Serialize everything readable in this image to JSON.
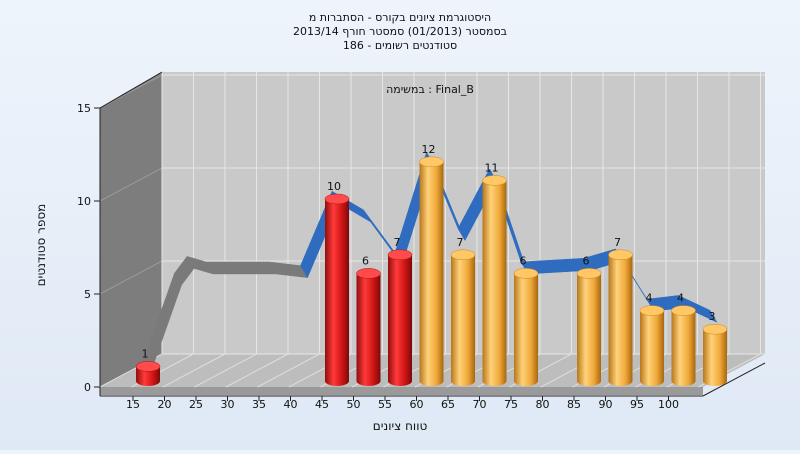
{
  "chart_data": {
    "type": "bar",
    "title_lines": [
      "היסטוגרמת ציונים בקורס - הסתברות מ",
      "בסמסטר  (01/2013)  סמסטר חורף 2013/14",
      "סטודנטים רשומים - 186"
    ],
    "inner_title": "במשימה : Final_B",
    "xlabel": "טווח ציונים",
    "ylabel": "מספר סטודנטים",
    "x_tick_labels": [
      "15",
      "20",
      "25",
      "30",
      "35",
      "40",
      "45",
      "50",
      "55",
      "60",
      "65",
      "70",
      "75",
      "80",
      "85",
      "90",
      "95",
      "100"
    ],
    "y_tick_labels": [
      "0",
      "5",
      "10",
      "15"
    ],
    "ylim": [
      0,
      15
    ],
    "bars": [
      {
        "bin": "15",
        "value": 1,
        "color": "#d81b1b"
      },
      {
        "bin": "45",
        "value": 10,
        "color": "#d81b1b"
      },
      {
        "bin": "50",
        "value": 6,
        "color": "#d81b1b"
      },
      {
        "bin": "55",
        "value": 7,
        "color": "#d81b1b"
      },
      {
        "bin": "60",
        "value": 12,
        "color": "#f0a93a"
      },
      {
        "bin": "65",
        "value": 7,
        "color": "#f0a93a"
      },
      {
        "bin": "70",
        "value": 11,
        "color": "#f0a93a"
      },
      {
        "bin": "75",
        "value": 6,
        "color": "#f0a93a"
      },
      {
        "bin": "85",
        "value": 6,
        "color": "#f0a93a"
      },
      {
        "bin": "90",
        "value": 7,
        "color": "#f0a93a"
      },
      {
        "bin": "95",
        "value": 4,
        "color": "#f0a93a"
      },
      {
        "bin": "100",
        "value": 4,
        "color": "#f0a93a"
      },
      {
        "bin": "105",
        "value": 3,
        "color": "#f0a93a"
      }
    ],
    "trend_line": {
      "color_gray": "#7a7a7a",
      "color_blue": "#2f6cc0",
      "points": [
        {
          "x": 15,
          "y": 1
        },
        {
          "x": 20,
          "y": 5.8
        },
        {
          "x": 22,
          "y": 6.7
        },
        {
          "x": 25,
          "y": 6.4
        },
        {
          "x": 35,
          "y": 6.4
        },
        {
          "x": 40,
          "y": 6.2
        },
        {
          "x": 45,
          "y": 10.2
        },
        {
          "x": 50,
          "y": 9.2
        },
        {
          "x": 55,
          "y": 6.9
        },
        {
          "x": 60,
          "y": 12.3
        },
        {
          "x": 65,
          "y": 8.2
        },
        {
          "x": 70,
          "y": 11.4
        },
        {
          "x": 75,
          "y": 6.4
        },
        {
          "x": 80,
          "y": 6.5
        },
        {
          "x": 85,
          "y": 6.6
        },
        {
          "x": 90,
          "y": 7.1
        },
        {
          "x": 95,
          "y": 4.4
        },
        {
          "x": 100,
          "y": 4.6
        },
        {
          "x": 105,
          "y": 3.8
        }
      ]
    },
    "wall_color": "#c9c9c9",
    "side_wall_color": "#7d7d7d",
    "floor_color": "#bdbdbd"
  }
}
